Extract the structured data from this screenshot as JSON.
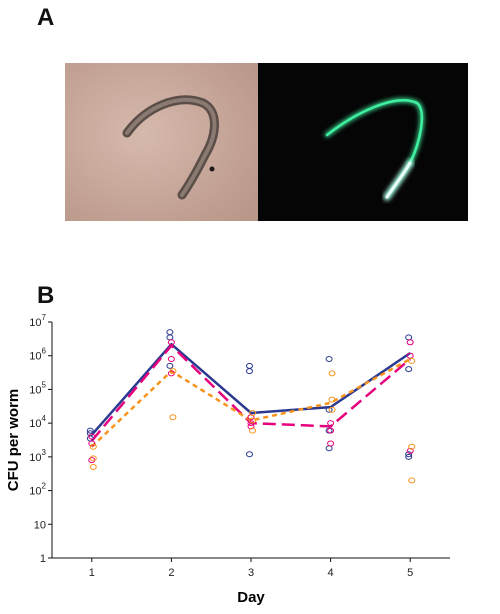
{
  "panels": {
    "a": "A",
    "b": "B"
  },
  "micrograph": {
    "left_background": "#c7a699",
    "right_background": "#050505",
    "fluorescence_color": "#3ff0a0"
  },
  "chart_data": {
    "type": "line",
    "xlabel": "Day",
    "ylabel": "CFU per worm",
    "x": [
      1,
      2,
      3,
      4,
      5
    ],
    "xlim": [
      0.5,
      5.5
    ],
    "ylim": [
      1,
      10000000
    ],
    "yscale": "log",
    "yticks": [
      {
        "value": 1,
        "base": "1",
        "exp": ""
      },
      {
        "value": 10,
        "base": "10",
        "exp": ""
      },
      {
        "value": 100,
        "base": "10",
        "exp": "2"
      },
      {
        "value": 1000,
        "base": "10",
        "exp": "3"
      },
      {
        "value": 10000,
        "base": "10",
        "exp": "4"
      },
      {
        "value": 100000,
        "base": "10",
        "exp": "5"
      },
      {
        "value": 1000000,
        "base": "10",
        "exp": "6"
      },
      {
        "value": 10000000,
        "base": "10",
        "exp": "7"
      }
    ],
    "grid": false,
    "legend": "none",
    "series": [
      {
        "color": "#2b3990",
        "line_style": "solid",
        "values": [
          4500,
          2200000,
          20000,
          30000,
          1200000
        ],
        "points": [
          [
            1,
            5000
          ],
          [
            1,
            6000
          ],
          [
            1,
            3500
          ],
          [
            2,
            5000000
          ],
          [
            2,
            3500000
          ],
          [
            2,
            500000
          ],
          [
            3,
            500000
          ],
          [
            3,
            350000
          ],
          [
            3,
            1200
          ],
          [
            4,
            800000
          ],
          [
            4,
            25000
          ],
          [
            4,
            6000
          ],
          [
            4,
            1800
          ],
          [
            5,
            3500000
          ],
          [
            5,
            400000
          ],
          [
            5,
            1200
          ],
          [
            5,
            1000
          ]
        ]
      },
      {
        "color": "#e6007e",
        "line_style": "long-dash",
        "values": [
          3000,
          2000000,
          10000,
          8000,
          800000
        ],
        "points": [
          [
            1,
            4000
          ],
          [
            1,
            2500
          ],
          [
            1,
            800
          ],
          [
            2,
            2500000
          ],
          [
            2,
            800000
          ],
          [
            2,
            300000
          ],
          [
            3,
            15000
          ],
          [
            3,
            10000
          ],
          [
            3,
            8000
          ],
          [
            4,
            10000
          ],
          [
            4,
            6000
          ],
          [
            4,
            2500
          ],
          [
            5,
            2500000
          ],
          [
            5,
            1000000
          ],
          [
            5,
            1500
          ]
        ]
      },
      {
        "color": "#f7941d",
        "line_style": "short-dash",
        "values": [
          2000,
          350000,
          12000,
          40000,
          800000
        ],
        "points": [
          [
            1,
            2000
          ],
          [
            1,
            900
          ],
          [
            1,
            500
          ],
          [
            2,
            350000
          ],
          [
            2,
            15000
          ],
          [
            3,
            20000
          ],
          [
            3,
            12000
          ],
          [
            3,
            6000
          ],
          [
            4,
            300000
          ],
          [
            4,
            50000
          ],
          [
            4,
            25000
          ],
          [
            5,
            700000
          ],
          [
            5,
            2000
          ],
          [
            5,
            200
          ]
        ]
      }
    ]
  }
}
